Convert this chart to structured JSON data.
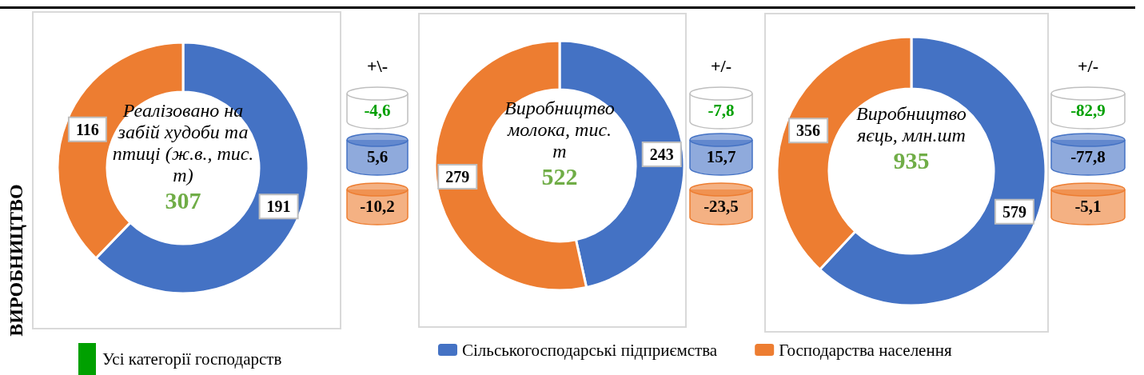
{
  "chart_data": [
    {
      "type": "donut",
      "title": "Реалізовано на забій худоби та птиці (ж.в., тис. т)",
      "subtitle": "307",
      "categories": [
        null,
        null
      ],
      "values": [
        191,
        116
      ],
      "colors": [
        "#4472c4",
        "#ed7d31"
      ],
      "data_labels": true,
      "annotations": [
        "+\\-",
        "-4,6",
        "5,6",
        "-10,2",
        "ВИРОБНИЦТВО",
        "Усі категорії господарств"
      ]
    },
    {
      "type": "donut",
      "title": "Виробництво молока, тис. т",
      "subtitle": "522",
      "categories": [
        "Сільськогосподарські підприємства",
        "Господарства населення"
      ],
      "values": [
        243,
        279
      ],
      "colors": [
        "#4472c4",
        "#ed7d31"
      ],
      "data_labels": true,
      "legend": "bottom",
      "annotations": [
        "+/-",
        "-7,8",
        "15,7",
        "-23,5"
      ]
    },
    {
      "type": "donut",
      "title": "Виробництво яєць, млн.шт",
      "subtitle": "935",
      "categories": [
        null,
        null
      ],
      "values": [
        579,
        356
      ],
      "colors": [
        "#4472c4",
        "#ed7d31"
      ],
      "data_labels": true,
      "annotations": [
        "+/-",
        "-82,9",
        "-77,8",
        "-5,1"
      ]
    }
  ]
}
